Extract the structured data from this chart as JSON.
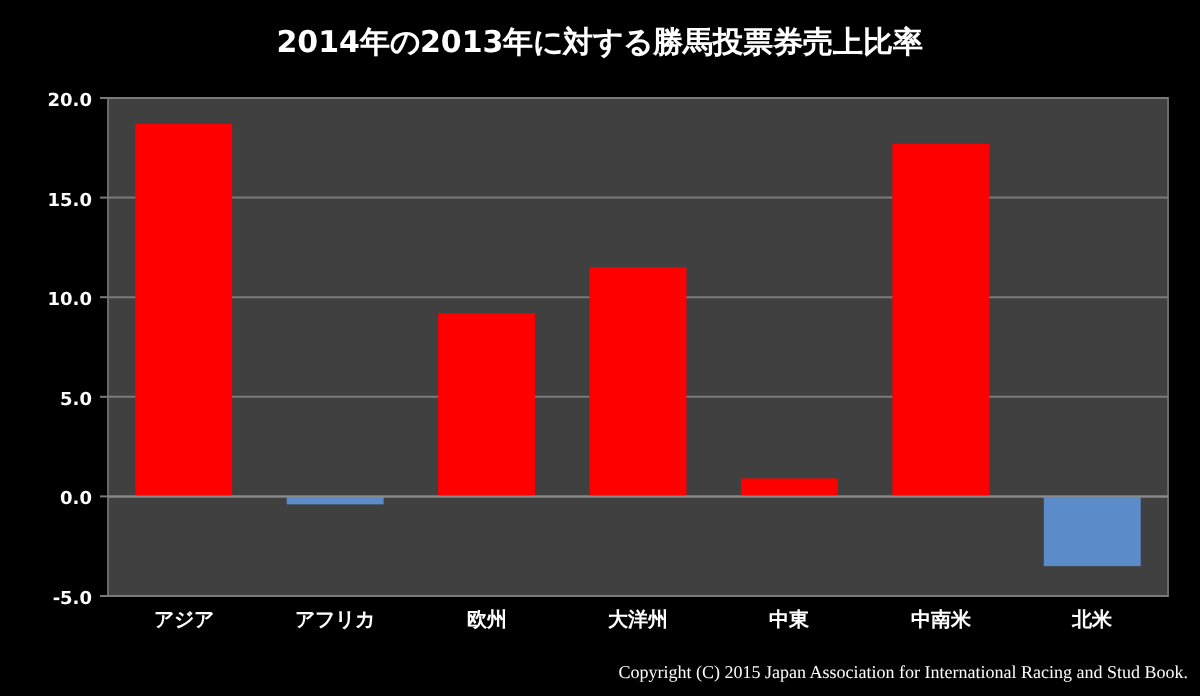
{
  "chart_data": {
    "type": "bar",
    "title": "2014年の2013年に対する勝馬投票券売上比率",
    "categories": [
      "アジア",
      "アフリカ",
      "欧州",
      "大洋州",
      "中東",
      "中南米",
      "北米"
    ],
    "values": [
      18.7,
      -0.4,
      9.2,
      11.5,
      0.9,
      17.7,
      -3.5
    ],
    "colors": [
      "#ff0000",
      "#5b8bc9",
      "#ff0000",
      "#ff0000",
      "#ff0000",
      "#ff0000",
      "#5b8bc9"
    ],
    "ylim": [
      -5,
      20
    ],
    "yticks": [
      {
        "value": -5,
        "label": "-5.0"
      },
      {
        "value": 0,
        "label": "0.0"
      },
      {
        "value": 5,
        "label": "5.0"
      },
      {
        "value": 10,
        "label": "10.0"
      },
      {
        "value": 15,
        "label": "15.0"
      },
      {
        "value": 20,
        "label": "20.0"
      }
    ],
    "grid": "y",
    "annotations": [
      "Copyright (C) 2015 Japan Association for International Racing and Stud Book."
    ]
  }
}
